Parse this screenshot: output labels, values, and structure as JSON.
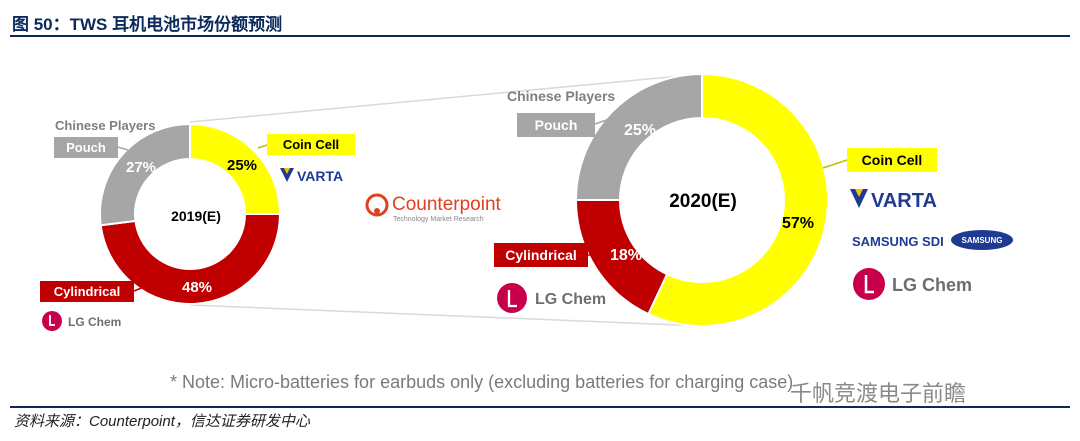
{
  "header": {
    "title": "图 50：TWS 耳机电池市场份额预测"
  },
  "chart_data": [
    {
      "type": "pie",
      "center_label": "2019(E)",
      "slices": [
        {
          "label": "Coin Cell",
          "value": 25,
          "color": "#ffff00",
          "value_label": "25%",
          "players": [
            "VARTA"
          ]
        },
        {
          "label": "Cylindrical",
          "value": 48,
          "color": "#c00000",
          "value_label": "48%",
          "players": [
            "LG Chem"
          ]
        },
        {
          "label": "Pouch",
          "value": 27,
          "color": "#a6a6a6",
          "value_label": "27%",
          "players": [
            "Chinese Players"
          ]
        }
      ]
    },
    {
      "type": "pie",
      "center_label": "2020(E)",
      "slices": [
        {
          "label": "Coin Cell",
          "value": 57,
          "color": "#ffff00",
          "value_label": "57%",
          "players": [
            "VARTA",
            "SAMSUNG SDI",
            "SAMSUNG",
            "LG Chem"
          ]
        },
        {
          "label": "Cylindrical",
          "value": 18,
          "color": "#c00000",
          "value_label": "18%",
          "players": [
            "LG Chem"
          ]
        },
        {
          "label": "Pouch",
          "value": 25,
          "color": "#a6a6a6",
          "value_label": "25%",
          "players": [
            "Chinese Players"
          ]
        }
      ]
    }
  ],
  "logo": {
    "name": "Counterpoint",
    "tagline": "Technology Market Research"
  },
  "note": "* Note: Micro-batteries for earbuds only (excluding batteries for charging case)",
  "watermark": "千帆竞渡电子前瞻",
  "footer": {
    "source": "资料来源：Counterpoint，信达证券研发中心"
  }
}
